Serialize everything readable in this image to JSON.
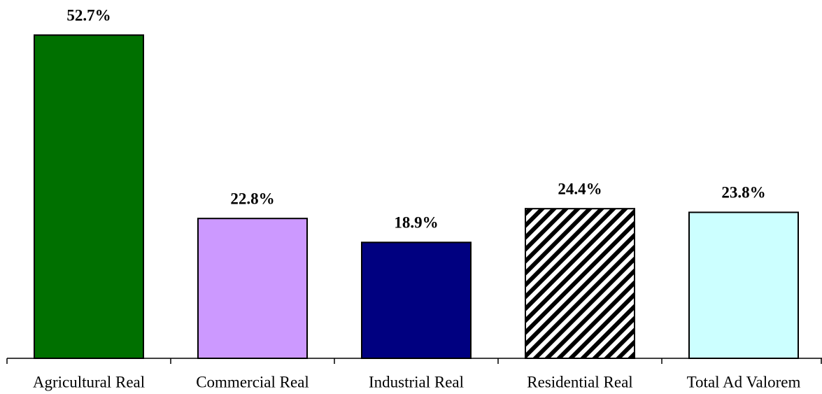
{
  "chart_data": {
    "type": "bar",
    "categories": [
      "Agricultural Real",
      "Commercial Real",
      "Industrial Real",
      "Residential Real",
      "Total Ad Valorem"
    ],
    "values": [
      52.7,
      22.8,
      18.9,
      24.4,
      23.8
    ],
    "value_labels": [
      "52.7%",
      "22.8%",
      "18.9%",
      "24.4%",
      "23.8%"
    ],
    "colors": [
      "#007000",
      "#cc99ff",
      "#000080",
      "#000000",
      "#ccffff"
    ],
    "fill_patterns": [
      "solid",
      "solid",
      "solid",
      "diagonal-hatch",
      "solid"
    ],
    "ylim": [
      0,
      55
    ]
  }
}
